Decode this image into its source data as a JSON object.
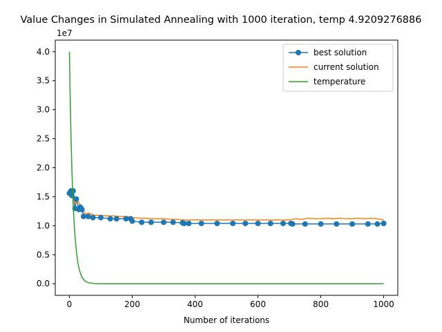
{
  "chart_data": {
    "type": "line",
    "title": "Value Changes in Simulated Annealing with 1000 iteration, temp 4.9209276886",
    "xlabel": "Number of iterations",
    "ylabel": "",
    "y_offset_label": "1e7",
    "xlim": [
      -45,
      1045
    ],
    "ylim": [
      -0.2,
      4.2
    ],
    "x_ticks": [
      0,
      200,
      400,
      600,
      800,
      1000
    ],
    "y_ticks": [
      0.0,
      0.5,
      1.0,
      1.5,
      2.0,
      2.5,
      3.0,
      3.5,
      4.0
    ],
    "y_tick_labels": [
      "0.0",
      "0.5",
      "1.0",
      "1.5",
      "2.0",
      "2.5",
      "3.0",
      "3.5",
      "4.0"
    ],
    "legend_position": "top-right",
    "grid": false,
    "series": [
      {
        "name": "best solution",
        "color": "#1f77b4",
        "marker": "circle",
        "x": [
          0,
          5,
          8,
          12,
          18,
          22,
          30,
          35,
          40,
          45,
          60,
          75,
          100,
          130,
          150,
          180,
          195,
          200,
          230,
          260,
          300,
          330,
          360,
          365,
          380,
          420,
          470,
          520,
          560,
          600,
          640,
          680,
          705,
          710,
          750,
          800,
          850,
          900,
          950,
          980,
          1000
        ],
        "values": [
          1.56,
          1.6,
          1.52,
          1.6,
          1.3,
          1.46,
          1.28,
          1.32,
          1.28,
          1.16,
          1.16,
          1.14,
          1.14,
          1.12,
          1.12,
          1.12,
          1.12,
          1.08,
          1.06,
          1.06,
          1.06,
          1.06,
          1.05,
          1.04,
          1.04,
          1.04,
          1.04,
          1.04,
          1.04,
          1.04,
          1.04,
          1.04,
          1.04,
          1.03,
          1.03,
          1.03,
          1.03,
          1.03,
          1.03,
          1.03,
          1.04
        ]
      },
      {
        "name": "current solution",
        "color": "#ff7f0e",
        "x": [
          0,
          5,
          10,
          15,
          20,
          25,
          30,
          35,
          40,
          45,
          50,
          60,
          70,
          80,
          100,
          120,
          140,
          160,
          180,
          200,
          220,
          240,
          260,
          280,
          300,
          320,
          340,
          360,
          380,
          400,
          450,
          500,
          550,
          600,
          650,
          700,
          720,
          740,
          760,
          780,
          800,
          820,
          840,
          860,
          880,
          900,
          920,
          940,
          960,
          980,
          1000
        ],
        "values": [
          1.58,
          1.62,
          1.5,
          1.42,
          1.38,
          1.45,
          1.4,
          1.35,
          1.3,
          1.25,
          1.2,
          1.22,
          1.2,
          1.18,
          1.18,
          1.17,
          1.17,
          1.16,
          1.16,
          1.14,
          1.13,
          1.13,
          1.12,
          1.12,
          1.12,
          1.11,
          1.11,
          1.1,
          1.1,
          1.1,
          1.1,
          1.1,
          1.1,
          1.1,
          1.1,
          1.1,
          1.12,
          1.11,
          1.13,
          1.12,
          1.12,
          1.13,
          1.12,
          1.13,
          1.12,
          1.12,
          1.13,
          1.12,
          1.13,
          1.12,
          1.1
        ]
      },
      {
        "name": "temperature",
        "color": "#2ca02c",
        "x": [
          0,
          2,
          4,
          6,
          8,
          10,
          12,
          14,
          16,
          18,
          20,
          24,
          28,
          32,
          40,
          50,
          60,
          80,
          100,
          200,
          400,
          600,
          800,
          1000
        ],
        "values": [
          4.0,
          3.35,
          2.8,
          2.35,
          1.97,
          1.65,
          1.38,
          1.16,
          0.97,
          0.81,
          0.68,
          0.48,
          0.33,
          0.23,
          0.11,
          0.045,
          0.018,
          0.003,
          0.0005,
          0.0,
          0.0,
          0.0,
          0.0,
          0.0
        ]
      }
    ]
  }
}
